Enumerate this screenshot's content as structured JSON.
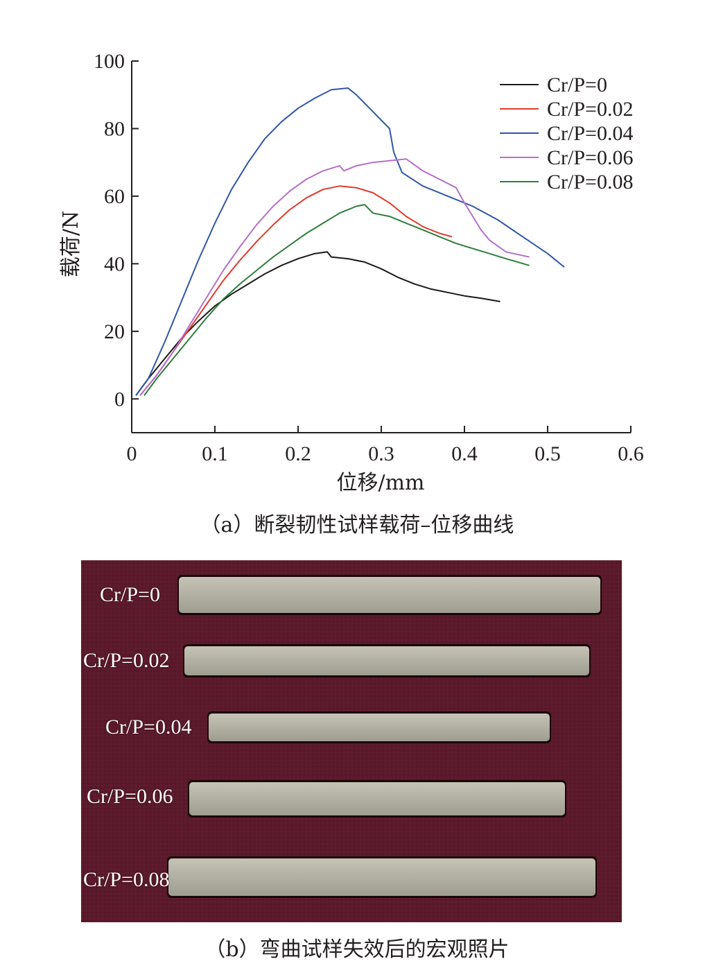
{
  "chart_data": {
    "type": "line",
    "xlabel": "位移/mm",
    "ylabel": "载荷/N",
    "xlim": [
      0,
      0.6
    ],
    "ylim": [
      -10,
      100
    ],
    "xticks": [
      "0",
      "0.1",
      "0.2",
      "0.3",
      "0.4",
      "0.5",
      "0.6"
    ],
    "yticks": [
      "0",
      "20",
      "40",
      "60",
      "80",
      "100"
    ],
    "grid": false,
    "legend_position": "top-right",
    "series": [
      {
        "name": "Cr/P=0",
        "color": "#1a1a1a",
        "x": [
          0.005,
          0.02,
          0.04,
          0.06,
          0.08,
          0.1,
          0.12,
          0.14,
          0.16,
          0.18,
          0.2,
          0.22,
          0.235,
          0.24,
          0.26,
          0.28,
          0.3,
          0.32,
          0.34,
          0.36,
          0.38,
          0.4,
          0.42,
          0.443
        ],
        "y": [
          1,
          6,
          12,
          18,
          23,
          27.5,
          31,
          34,
          37,
          39.5,
          41.5,
          43,
          43.5,
          42,
          41.5,
          40.5,
          38.5,
          36,
          34,
          32.5,
          31.5,
          30.5,
          29.8,
          28.8
        ]
      },
      {
        "name": "Cr/P=0.02",
        "color": "#e03a2a",
        "x": [
          0.01,
          0.03,
          0.05,
          0.07,
          0.09,
          0.11,
          0.13,
          0.15,
          0.17,
          0.19,
          0.21,
          0.23,
          0.25,
          0.27,
          0.29,
          0.31,
          0.33,
          0.35,
          0.37,
          0.385
        ],
        "y": [
          1,
          7,
          14,
          21,
          28,
          35,
          41,
          46.5,
          51.5,
          56,
          59.5,
          62,
          63,
          62.5,
          61,
          58,
          54,
          51,
          49,
          48
        ]
      },
      {
        "name": "Cr/P=0.04",
        "color": "#2f56a6",
        "x": [
          0.005,
          0.02,
          0.04,
          0.06,
          0.08,
          0.1,
          0.12,
          0.14,
          0.16,
          0.18,
          0.2,
          0.22,
          0.24,
          0.26,
          0.27,
          0.29,
          0.31,
          0.315,
          0.325,
          0.35,
          0.38,
          0.41,
          0.44,
          0.47,
          0.5,
          0.52
        ],
        "y": [
          1,
          6,
          17,
          29,
          41,
          52,
          62,
          70,
          77,
          82,
          86,
          89,
          91.5,
          92,
          90,
          85,
          80,
          73,
          67,
          63,
          60,
          57,
          53,
          48,
          43,
          39
        ]
      },
      {
        "name": "Cr/P=0.06",
        "color": "#b56ec9",
        "x": [
          0.01,
          0.03,
          0.05,
          0.07,
          0.09,
          0.11,
          0.13,
          0.15,
          0.17,
          0.19,
          0.21,
          0.23,
          0.25,
          0.255,
          0.27,
          0.29,
          0.31,
          0.33,
          0.35,
          0.37,
          0.39,
          0.4,
          0.41,
          0.42,
          0.43,
          0.45,
          0.478
        ],
        "y": [
          1,
          7,
          14,
          22,
          30,
          38,
          45,
          51.5,
          57,
          61.5,
          65,
          67.5,
          69,
          67.5,
          69,
          70,
          70.5,
          71,
          67.5,
          65,
          62.5,
          58,
          54,
          50,
          47,
          43.5,
          42
        ]
      },
      {
        "name": "Cr/P=0.08",
        "color": "#2e7d3a",
        "x": [
          0.015,
          0.03,
          0.05,
          0.07,
          0.09,
          0.11,
          0.13,
          0.15,
          0.17,
          0.19,
          0.21,
          0.23,
          0.25,
          0.27,
          0.28,
          0.29,
          0.31,
          0.33,
          0.35,
          0.37,
          0.39,
          0.41,
          0.43,
          0.45,
          0.478
        ],
        "y": [
          1,
          6,
          12,
          18,
          24,
          29.5,
          34,
          38,
          42,
          45.5,
          49,
          52,
          55,
          57,
          57.5,
          55,
          54,
          52,
          50,
          48,
          46,
          44.5,
          43,
          41.5,
          39.5
        ]
      }
    ]
  },
  "captions": {
    "a": "（a）断裂韧性试样载荷–位移曲线",
    "b": "（b）弯曲试样失效后的宏观照片"
  },
  "photo": {
    "background_color": "#5a1a2c",
    "specimen_color": "#b4b2a4",
    "specimens": [
      {
        "label": "Cr/P=0"
      },
      {
        "label": "Cr/P=0.02"
      },
      {
        "label": "Cr/P=0.04"
      },
      {
        "label": "Cr/P=0.06"
      },
      {
        "label": "Cr/P=0.08"
      }
    ]
  }
}
